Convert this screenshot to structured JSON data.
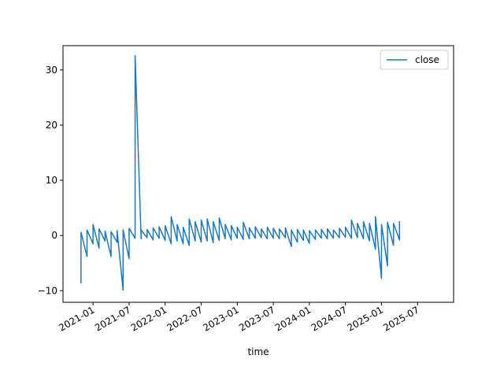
{
  "chart_data": {
    "type": "line",
    "xlabel": "time",
    "x": [
      "2020-11",
      "2020-11",
      "2020-12",
      "2020-12",
      "2021-01",
      "2021-01",
      "2021-02",
      "2021-02",
      "2021-03",
      "2021-03",
      "2021-04",
      "2021-04",
      "2021-05",
      "2021-05",
      "2021-06",
      "2021-06",
      "2021-07",
      "2021-07",
      "2021-08",
      "2021-08",
      "2021-09",
      "2021-09",
      "2021-10",
      "2021-10",
      "2021-11",
      "2021-11",
      "2021-12",
      "2021-12",
      "2022-01",
      "2022-01",
      "2022-02",
      "2022-02",
      "2022-03",
      "2022-03",
      "2022-04",
      "2022-04",
      "2022-05",
      "2022-05",
      "2022-06",
      "2022-06",
      "2022-07",
      "2022-07",
      "2022-08",
      "2022-08",
      "2022-09",
      "2022-09",
      "2022-10",
      "2022-10",
      "2022-11",
      "2022-11",
      "2022-12",
      "2022-12",
      "2023-01",
      "2023-01",
      "2023-02",
      "2023-02",
      "2023-03",
      "2023-03",
      "2023-04",
      "2023-04",
      "2023-05",
      "2023-05",
      "2023-06",
      "2023-06",
      "2023-07",
      "2023-07",
      "2023-08",
      "2023-08",
      "2023-09",
      "2023-09",
      "2023-10",
      "2023-10",
      "2023-11",
      "2023-11",
      "2023-12",
      "2023-12",
      "2024-01",
      "2024-01",
      "2024-02",
      "2024-02",
      "2024-03",
      "2024-03",
      "2024-04",
      "2024-04",
      "2024-05",
      "2024-05",
      "2024-06",
      "2024-06",
      "2024-07",
      "2024-07",
      "2024-08",
      "2024-08",
      "2024-09",
      "2024-09",
      "2024-10",
      "2024-10",
      "2024-11",
      "2024-11",
      "2024-12",
      "2024-12",
      "2025-01",
      "2025-01",
      "2025-02",
      "2025-02",
      "2025-03",
      "2025-03",
      "2025-04",
      "2025-04"
    ],
    "series": [
      {
        "name": "close",
        "color": "#1f77b4",
        "values": [
          -8.7,
          0.6,
          -3.8,
          1.0,
          -1.5,
          2.0,
          -2.3,
          1.2,
          -1.0,
          0.8,
          -3.8,
          0.7,
          -1.2,
          0.9,
          -9.9,
          1.0,
          -4.2,
          1.3,
          -0.5,
          32.6,
          -0.6,
          1.0,
          -0.4,
          1.1,
          -0.8,
          1.4,
          -0.5,
          1.6,
          -0.9,
          1.8,
          -1.5,
          3.4,
          -1.0,
          2.0,
          -1.5,
          1.5,
          -1.8,
          3.0,
          -1.0,
          2.5,
          -1.2,
          2.8,
          -1.0,
          3.0,
          -1.3,
          2.5,
          -0.9,
          3.2,
          -0.6,
          2.0,
          -0.8,
          1.8,
          -0.5,
          1.5,
          -0.7,
          2.4,
          -0.6,
          1.4,
          -0.5,
          1.6,
          -0.4,
          1.2,
          -0.6,
          1.5,
          -0.5,
          1.3,
          -0.6,
          1.2,
          -0.4,
          1.4,
          -2.0,
          1.0,
          -1.2,
          1.1,
          -0.9,
          1.0,
          -1.4,
          0.9,
          -0.7,
          1.0,
          -0.5,
          1.1,
          -0.6,
          1.2,
          -0.5,
          1.0,
          -0.4,
          1.3,
          -0.3,
          1.5,
          -0.5,
          2.8,
          -0.4,
          2.2,
          -0.6,
          2.5,
          -1.0,
          2.2,
          -2.5,
          3.4,
          -7.8,
          2.0,
          -5.5,
          2.4,
          -1.8,
          2.2,
          -0.8,
          2.6
        ]
      }
    ],
    "xlim": [
      "2020-08",
      "2026-01"
    ],
    "xticks": [
      "2021-01",
      "2021-07",
      "2022-01",
      "2022-07",
      "2023-01",
      "2023-07",
      "2024-01",
      "2024-07",
      "2025-01",
      "2025-07"
    ],
    "ylim": [
      -12.1,
      34.4
    ],
    "yticks": [
      {
        "value": -10,
        "label": "−10"
      },
      0,
      10,
      20,
      30
    ],
    "legend": "upper right"
  }
}
